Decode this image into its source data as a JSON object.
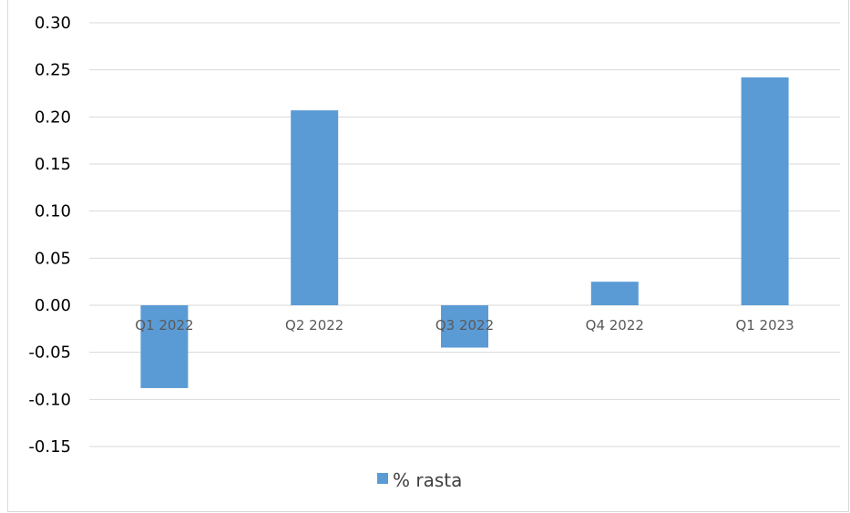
{
  "chart_data": {
    "type": "bar",
    "title": "",
    "xlabel": "",
    "ylabel": "",
    "categories": [
      "Q1 2022",
      "Q2 2022",
      "Q3 2022",
      "Q4 2022",
      "Q1 2023"
    ],
    "series": [
      {
        "name": "% rasta",
        "values": [
          -0.088,
          0.207,
          -0.045,
          0.025,
          0.242
        ],
        "color": "#5b9bd5"
      }
    ],
    "ylim": [
      -0.15,
      0.3
    ],
    "y_ticks": [
      "0.30",
      "0.25",
      "0.20",
      "0.15",
      "0.10",
      "0.05",
      "0.00",
      "-0.05",
      "-0.10",
      "-0.15"
    ],
    "grid": true,
    "legend": "bottom-center"
  }
}
